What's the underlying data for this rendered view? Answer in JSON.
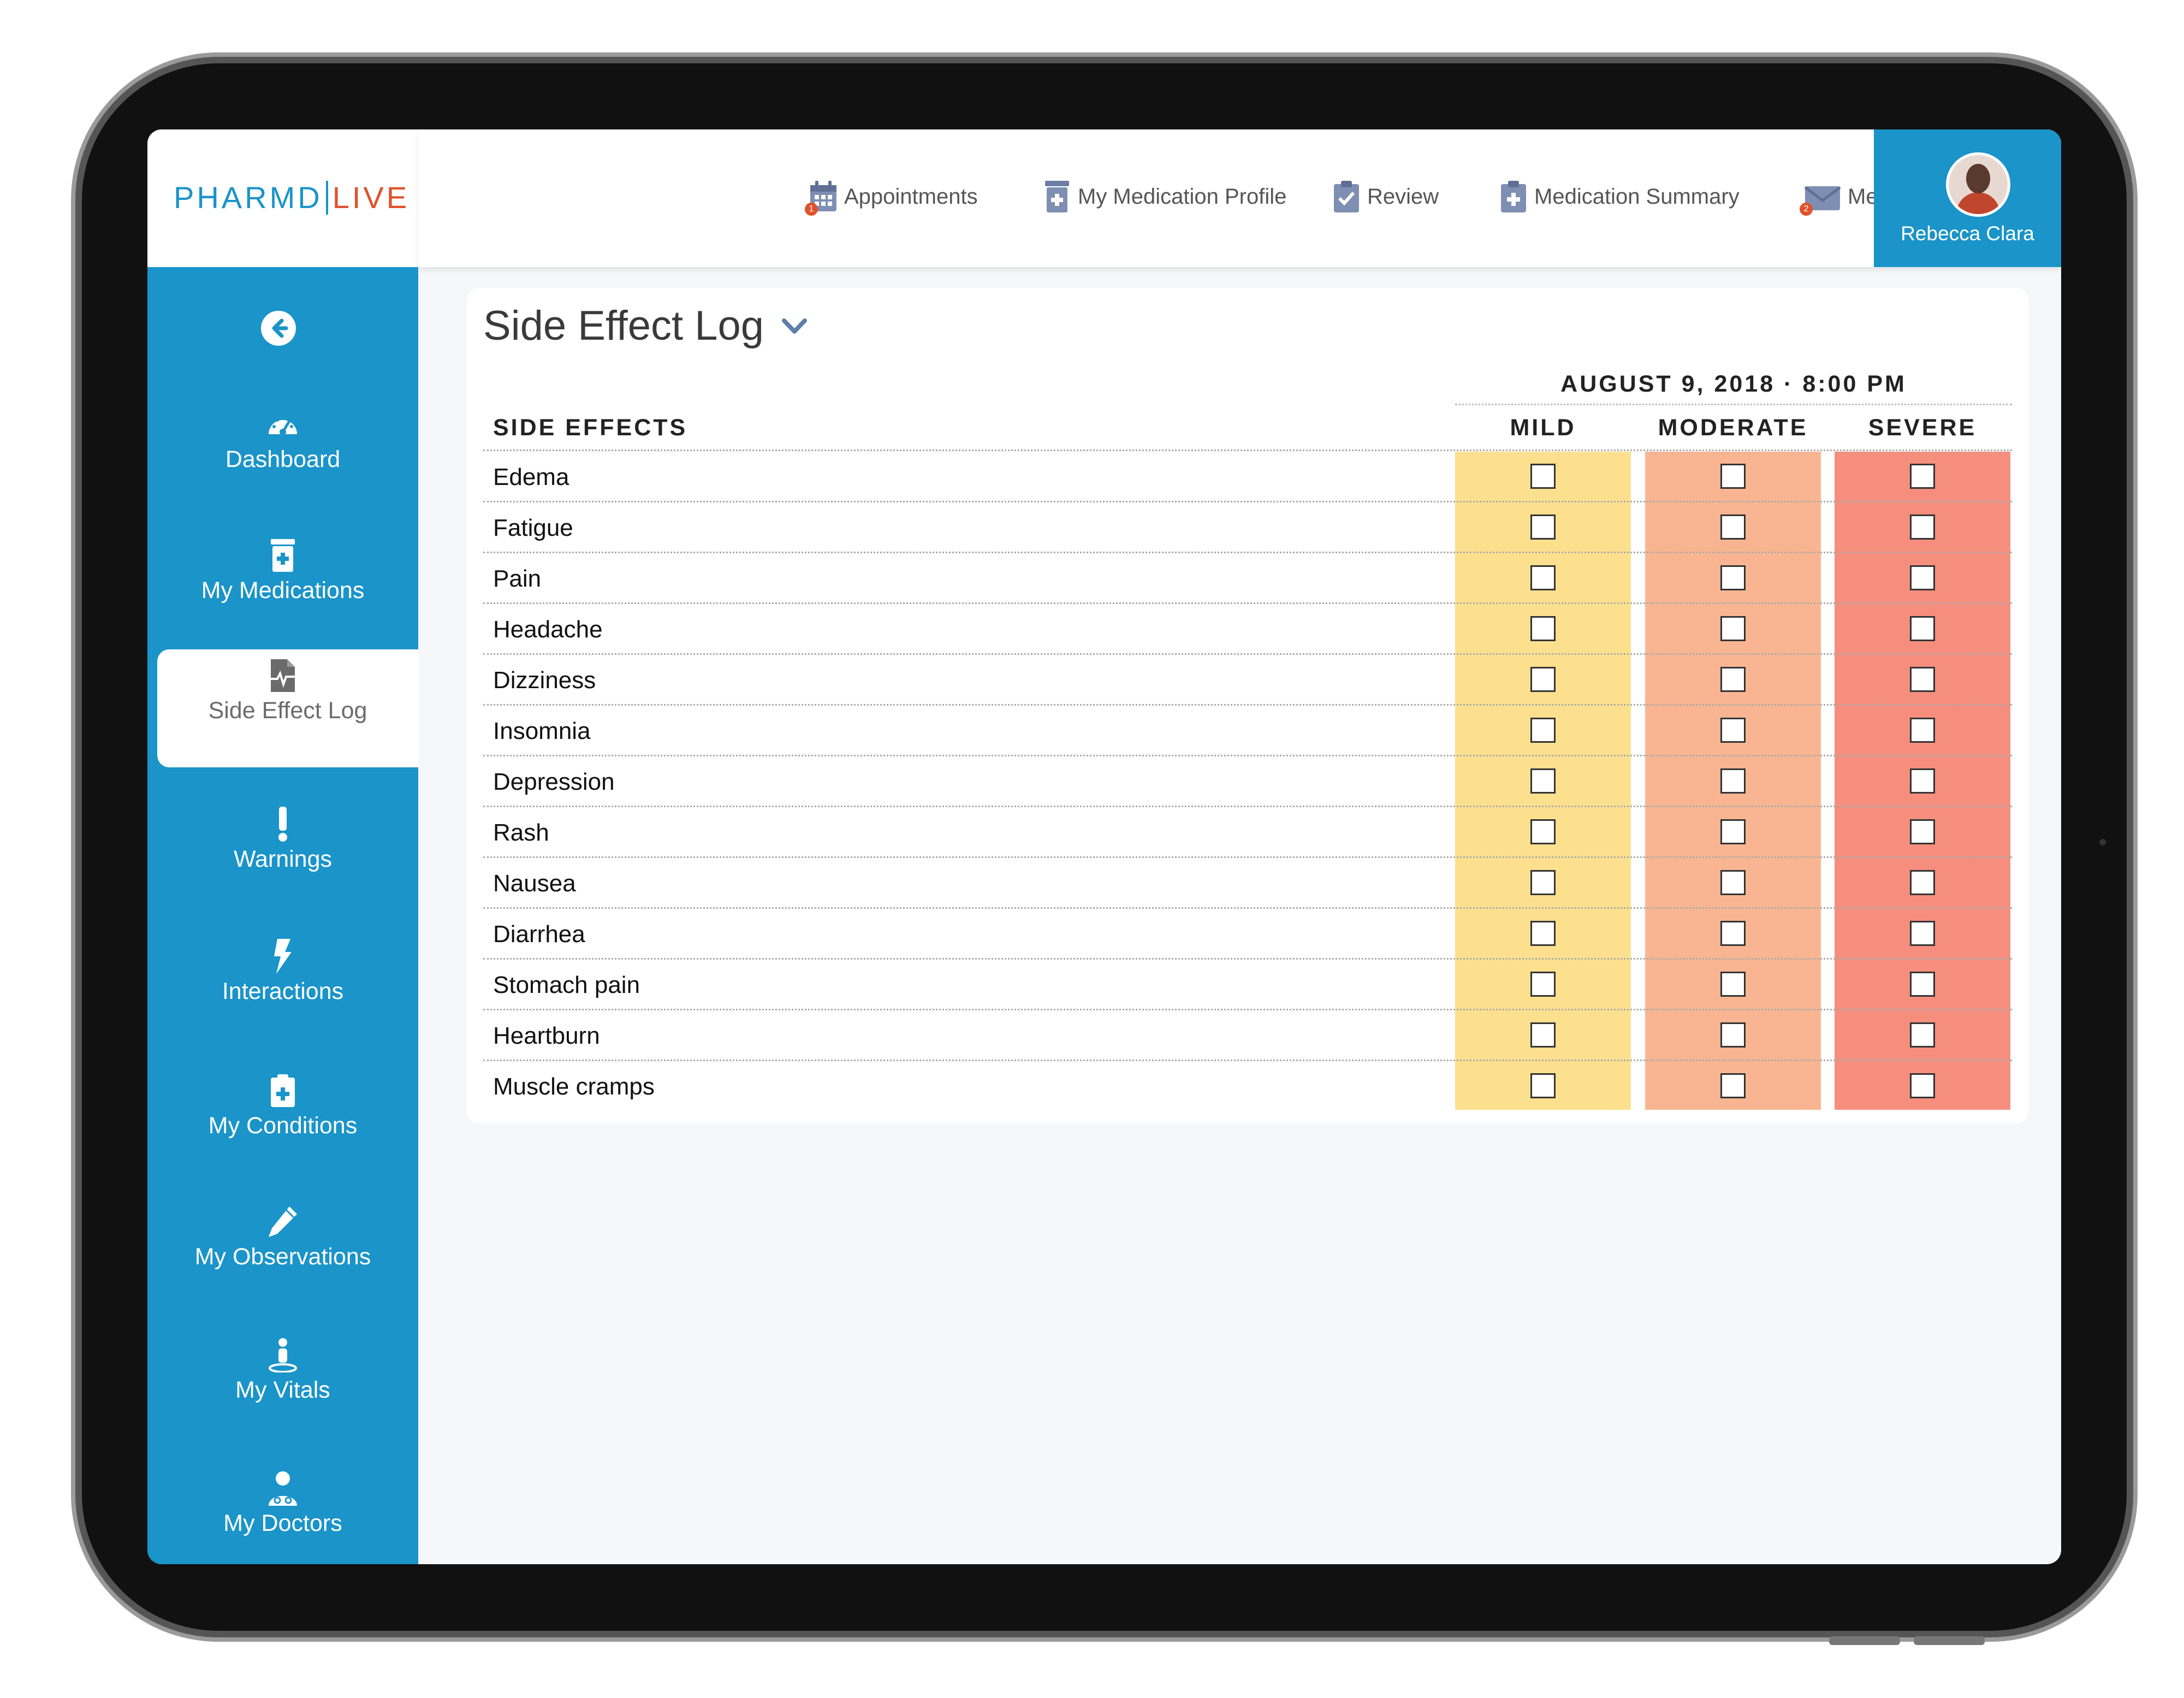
{
  "app": {
    "logo_left": "PHARMD",
    "logo_right": "LIVE",
    "brand_color": "#1a94c9",
    "accent_color": "#e0522b"
  },
  "topnav": [
    {
      "label": "Appointments",
      "icon": "calendar-icon",
      "badge": "1"
    },
    {
      "label": "My Medication Profile",
      "icon": "pill-bottle-icon",
      "badge": ""
    },
    {
      "label": "Review",
      "icon": "clipboard-check-icon",
      "badge": ""
    },
    {
      "label": "Medication Summary",
      "icon": "clipboard-plus-icon",
      "badge": ""
    },
    {
      "label": "Messages",
      "icon": "envelope-icon",
      "badge": "2"
    }
  ],
  "user": {
    "name": "Rebecca Clara"
  },
  "sidebar": {
    "back_icon": "back-arrow-icon",
    "items": [
      {
        "label": "Dashboard",
        "icon": "speedometer-icon",
        "active": false
      },
      {
        "label": "My Medications",
        "icon": "pill-bottle-icon",
        "active": false
      },
      {
        "label": "Side Effect Log",
        "icon": "document-pulse-icon",
        "active": true
      },
      {
        "label": "Warnings",
        "icon": "exclamation-icon",
        "active": false
      },
      {
        "label": "Interactions",
        "icon": "lightning-icon",
        "active": false
      },
      {
        "label": "My Conditions",
        "icon": "clipboard-plus-icon",
        "active": false
      },
      {
        "label": "My Observations",
        "icon": "pencil-icon",
        "active": false
      },
      {
        "label": "My Vitals",
        "icon": "person-location-icon",
        "active": false
      },
      {
        "label": "My Doctors",
        "icon": "doctor-icon",
        "active": false
      }
    ]
  },
  "main": {
    "title": "Side Effect Log",
    "date_heading": "AUGUST 9, 2018 · 8:00 PM",
    "side_effects_header": "SIDE EFFECTS",
    "severity_columns": [
      {
        "label": "MILD",
        "color": "#fde08e"
      },
      {
        "label": "MODERATE",
        "color": "#f9b592"
      },
      {
        "label": "SEVERE",
        "color": "#f58e7d"
      }
    ],
    "rows": [
      {
        "label": "Edema",
        "mild": false,
        "moderate": false,
        "severe": false
      },
      {
        "label": "Fatigue",
        "mild": false,
        "moderate": false,
        "severe": false
      },
      {
        "label": "Pain",
        "mild": false,
        "moderate": false,
        "severe": false
      },
      {
        "label": "Headache",
        "mild": false,
        "moderate": false,
        "severe": false
      },
      {
        "label": "Dizziness",
        "mild": false,
        "moderate": false,
        "severe": false
      },
      {
        "label": "Insomnia",
        "mild": false,
        "moderate": false,
        "severe": false
      },
      {
        "label": "Depression",
        "mild": false,
        "moderate": false,
        "severe": false
      },
      {
        "label": "Rash",
        "mild": false,
        "moderate": false,
        "severe": false
      },
      {
        "label": "Nausea",
        "mild": false,
        "moderate": false,
        "severe": false
      },
      {
        "label": "Diarrhea",
        "mild": false,
        "moderate": false,
        "severe": false
      },
      {
        "label": "Stomach pain",
        "mild": false,
        "moderate": false,
        "severe": false
      },
      {
        "label": "Heartburn",
        "mild": false,
        "moderate": false,
        "severe": false
      },
      {
        "label": "Muscle cramps",
        "mild": false,
        "moderate": false,
        "severe": false
      }
    ]
  }
}
